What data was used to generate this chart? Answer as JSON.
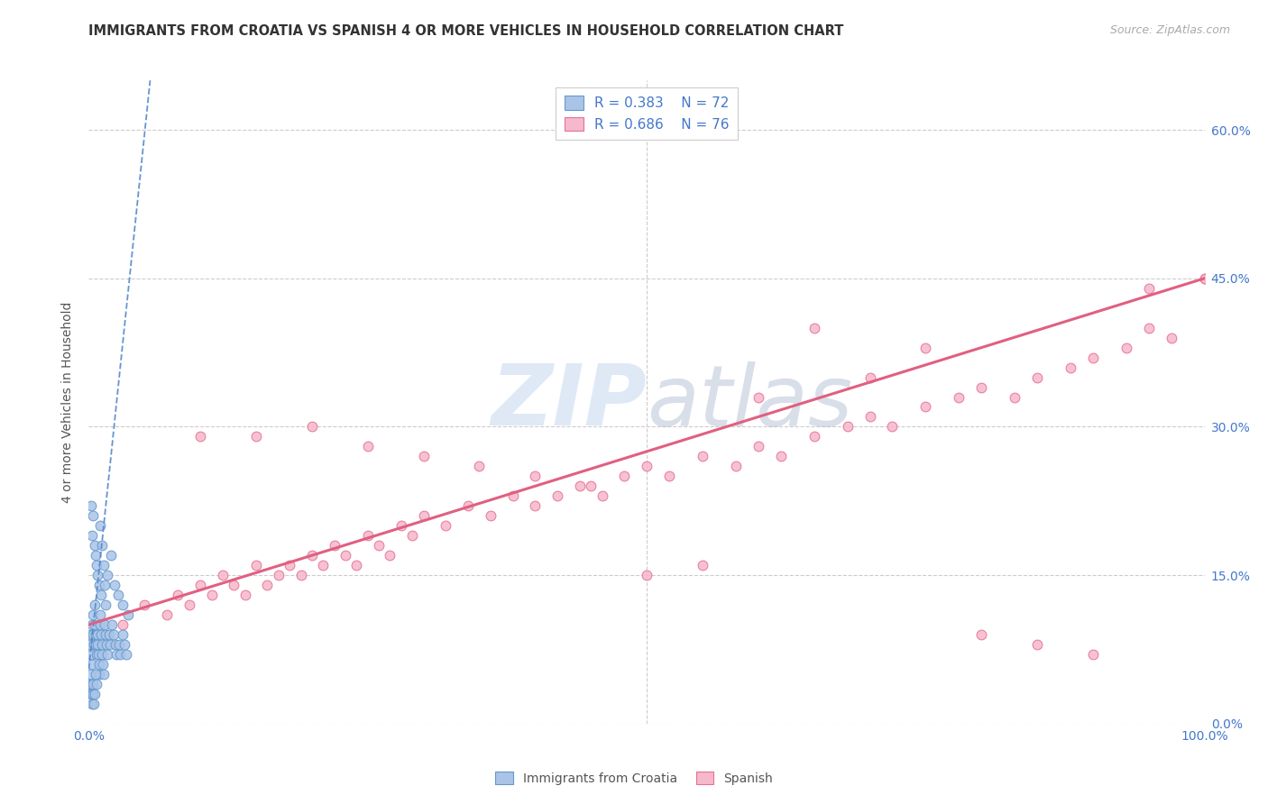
{
  "title": "IMMIGRANTS FROM CROATIA VS SPANISH 4 OR MORE VEHICLES IN HOUSEHOLD CORRELATION CHART",
  "source": "Source: ZipAtlas.com",
  "ylabel": "4 or more Vehicles in Household",
  "y_tick_labels_right": [
    "0.0%",
    "15.0%",
    "30.0%",
    "45.0%",
    "60.0%"
  ],
  "y_tick_values": [
    0,
    15,
    30,
    45,
    60
  ],
  "xlim": [
    0,
    100
  ],
  "ylim": [
    0,
    65
  ],
  "legend_label_1": "Immigrants from Croatia",
  "legend_label_2": "Spanish",
  "R1": 0.383,
  "N1": 72,
  "R2": 0.686,
  "N2": 76,
  "color_blue_fill": "#aac4e8",
  "color_blue_edge": "#6699cc",
  "color_pink_fill": "#f5b8cc",
  "color_pink_edge": "#e87090",
  "color_blue_line": "#5588cc",
  "color_pink_line": "#e06080",
  "color_text_blue": "#4477cc",
  "color_text_title": "#333333",
  "color_source": "#aaaaaa",
  "color_grid": "#cccccc",
  "background": "#ffffff",
  "croatia_x": [
    0.2,
    0.3,
    0.4,
    0.5,
    0.6,
    0.7,
    0.8,
    0.9,
    1.0,
    1.1,
    1.2,
    1.3,
    1.4,
    1.5,
    1.7,
    2.0,
    2.3,
    2.6,
    3.0,
    3.5,
    0.1,
    0.15,
    0.2,
    0.25,
    0.3,
    0.35,
    0.4,
    0.45,
    0.5,
    0.55,
    0.6,
    0.65,
    0.7,
    0.75,
    0.8,
    0.85,
    0.9,
    0.95,
    1.0,
    1.05,
    1.1,
    1.15,
    1.2,
    1.25,
    1.3,
    1.4,
    1.5,
    1.6,
    1.7,
    1.8,
    1.9,
    2.1,
    2.2,
    2.4,
    2.5,
    2.7,
    2.8,
    3.0,
    3.2,
    3.4,
    0.05,
    0.1,
    0.15,
    0.2,
    0.25,
    0.3,
    0.35,
    0.4,
    0.45,
    0.5,
    0.6,
    0.7
  ],
  "croatia_y": [
    22,
    19,
    21,
    18,
    17,
    16,
    15,
    14,
    20,
    13,
    18,
    16,
    14,
    12,
    15,
    17,
    14,
    13,
    12,
    11,
    9,
    8,
    7,
    6,
    10,
    11,
    9,
    8,
    12,
    10,
    9,
    8,
    7,
    9,
    8,
    7,
    6,
    5,
    11,
    10,
    9,
    8,
    7,
    6,
    5,
    10,
    9,
    8,
    7,
    9,
    8,
    10,
    9,
    8,
    7,
    8,
    7,
    9,
    8,
    7,
    4,
    3,
    5,
    4,
    3,
    2,
    4,
    3,
    2,
    3,
    5,
    4
  ],
  "spanish_x": [
    3,
    5,
    7,
    8,
    9,
    10,
    11,
    12,
    13,
    14,
    15,
    16,
    17,
    18,
    19,
    20,
    21,
    22,
    23,
    24,
    25,
    26,
    27,
    28,
    29,
    30,
    32,
    34,
    36,
    38,
    40,
    42,
    44,
    46,
    48,
    50,
    52,
    55,
    58,
    60,
    62,
    65,
    68,
    70,
    72,
    75,
    78,
    80,
    83,
    85,
    88,
    90,
    93,
    95,
    97,
    100,
    10,
    15,
    20,
    25,
    30,
    35,
    40,
    45,
    50,
    55,
    60,
    65,
    70,
    75,
    80,
    85,
    90,
    95,
    100,
    55
  ],
  "spanish_y": [
    10,
    12,
    11,
    13,
    12,
    14,
    13,
    15,
    14,
    13,
    16,
    14,
    15,
    16,
    15,
    17,
    16,
    18,
    17,
    16,
    19,
    18,
    17,
    20,
    19,
    21,
    20,
    22,
    21,
    23,
    22,
    23,
    24,
    23,
    25,
    26,
    25,
    27,
    26,
    28,
    27,
    29,
    30,
    31,
    30,
    32,
    33,
    34,
    33,
    35,
    36,
    37,
    38,
    40,
    39,
    45,
    29,
    29,
    30,
    28,
    27,
    26,
    25,
    24,
    15,
    16,
    33,
    40,
    35,
    38,
    9,
    8,
    7,
    44,
    45,
    60
  ],
  "trend_croatia_x0": 0.0,
  "trend_croatia_y0": 5.5,
  "trend_croatia_x1": 5.5,
  "trend_croatia_y1": 65.0,
  "trend_spanish_x0": 0.0,
  "trend_spanish_y0": 10.0,
  "trend_spanish_x1": 100.0,
  "trend_spanish_y1": 45.0
}
